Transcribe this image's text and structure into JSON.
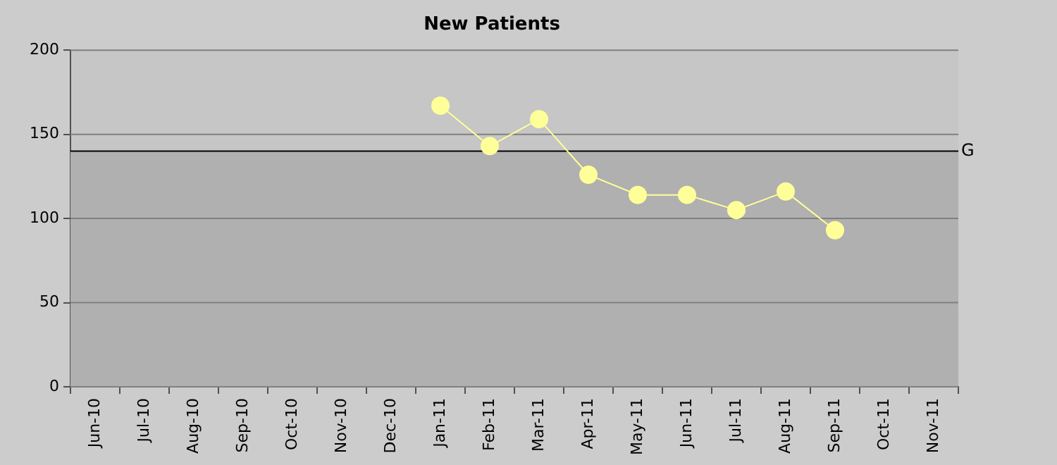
{
  "chart_data": {
    "type": "line",
    "title": "New Patients",
    "categories": [
      "Jun-10",
      "Jul-10",
      "Aug-10",
      "Sep-10",
      "Oct-10",
      "Nov-10",
      "Dec-10",
      "Jan-11",
      "Feb-11",
      "Mar-11",
      "Apr-11",
      "May-11",
      "Jun-11",
      "Jul-11",
      "Aug-11",
      "Sep-11",
      "Oct-11",
      "Nov-11"
    ],
    "series": [
      {
        "color": "#ffff99",
        "values": [
          null,
          null,
          null,
          null,
          null,
          null,
          null,
          167,
          143,
          159,
          126,
          114,
          114,
          105,
          116,
          93,
          null,
          null
        ]
      }
    ],
    "ylim": [
      0,
      200
    ],
    "yticks": [
      0,
      50,
      100,
      150,
      200
    ],
    "grid": "y",
    "legend": false,
    "marker": "circle",
    "line_style": "solid",
    "ref_lines": [
      {
        "axis": "y",
        "value": 140,
        "label": "G",
        "color": "#000000"
      }
    ],
    "bands": [
      {
        "axis": "y",
        "from": 0,
        "to": 140,
        "color": "#b0b0b0"
      }
    ]
  }
}
